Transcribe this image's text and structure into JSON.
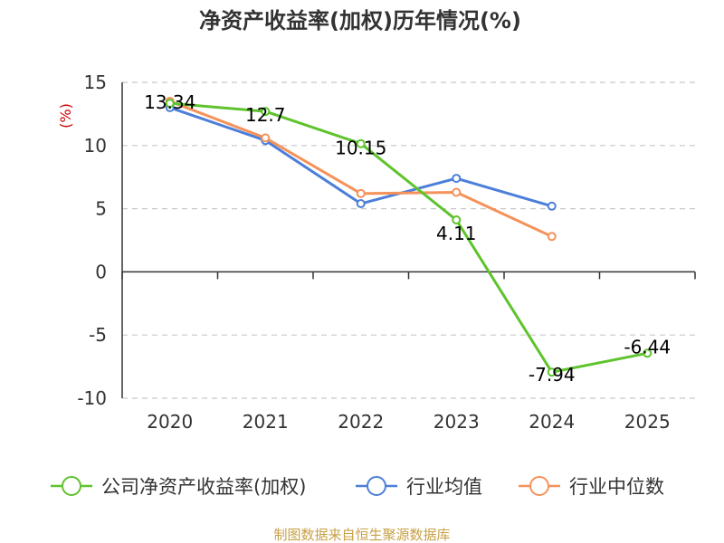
{
  "chart_data": {
    "type": "line",
    "title": "净资产收益率(加权)历年情况(%)",
    "ylabel": "(%)",
    "xlabel": "",
    "categories": [
      "2020",
      "2021",
      "2022",
      "2023",
      "2024",
      "2025"
    ],
    "ylim": [
      -10,
      15
    ],
    "yticks": [
      15,
      10,
      5,
      0,
      -5,
      -10
    ],
    "grid": true,
    "legend_position": "bottom",
    "series": [
      {
        "name": "公司净资产收益率(加权)",
        "color": "#5ec32c",
        "values": [
          13.34,
          12.7,
          10.15,
          4.11,
          -7.94,
          -6.44
        ],
        "labels": [
          "13.34",
          "12.7",
          "10.15",
          "4.11",
          "-7.94",
          "-6.44"
        ]
      },
      {
        "name": "行业均值",
        "color": "#4c7fd9",
        "values": [
          13.0,
          10.4,
          5.4,
          7.4,
          5.2,
          null
        ]
      },
      {
        "name": "行业中位数",
        "color": "#f5925a",
        "values": [
          13.5,
          10.6,
          6.2,
          6.3,
          2.8,
          null
        ]
      }
    ],
    "source": "制图数据来自恒生聚源数据库"
  }
}
